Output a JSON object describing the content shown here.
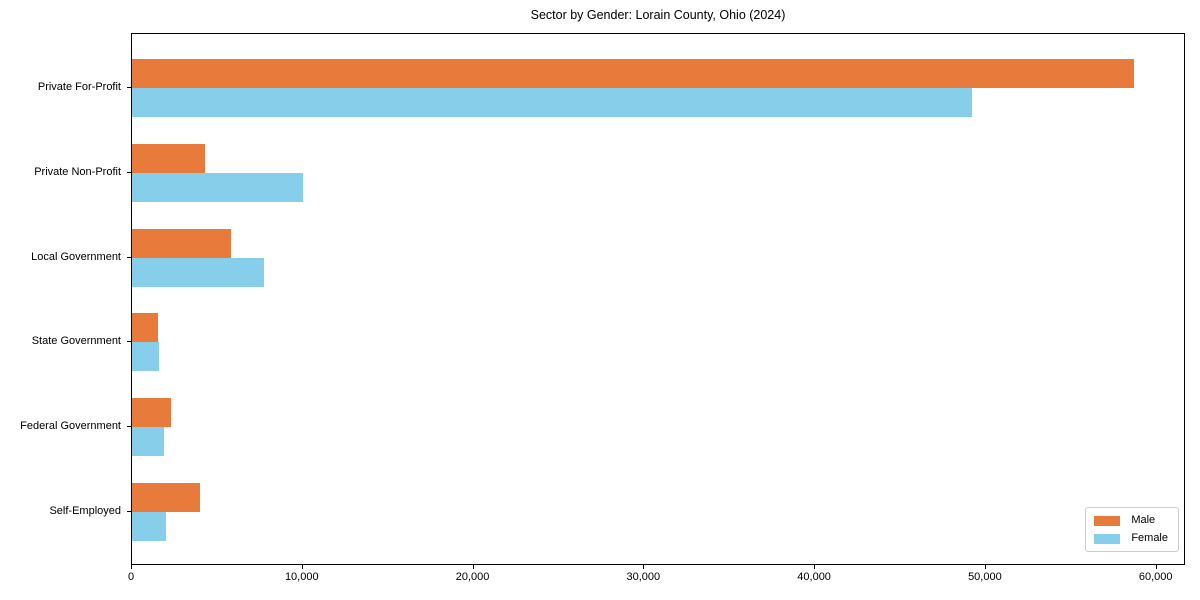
{
  "chart_data": {
    "type": "bar",
    "orientation": "horizontal",
    "title": "Sector by Gender: Lorain County, Ohio (2024)",
    "xlabel": "",
    "ylabel": "",
    "categories": [
      "Private For-Profit",
      "Private Non-Profit",
      "Local Government",
      "State Government",
      "Federal Government",
      "Self-Employed"
    ],
    "series": [
      {
        "name": "Male",
        "color": "#e87a3b",
        "values": [
          58700,
          4300,
          5800,
          1500,
          2300,
          4000
        ]
      },
      {
        "name": "Female",
        "color": "#87ceeb",
        "values": [
          49200,
          10000,
          7700,
          1600,
          1900,
          2000
        ]
      }
    ],
    "xlim": [
      0,
      61600
    ],
    "xticks": [
      0,
      10000,
      20000,
      30000,
      40000,
      50000,
      60000
    ],
    "xtick_labels": [
      "0",
      "10,000",
      "20,000",
      "30,000",
      "40,000",
      "50,000",
      "60,000"
    ],
    "grid": false,
    "legend_position": "lower right"
  },
  "legend": {
    "items": [
      {
        "label": "Male",
        "color": "#e87a3b"
      },
      {
        "label": "Female",
        "color": "#87ceeb"
      }
    ]
  }
}
